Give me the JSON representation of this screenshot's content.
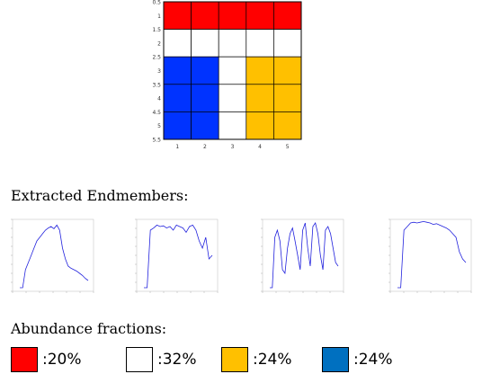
{
  "grid": {
    "colors": {
      "red": "#ff0000",
      "white": "#ffffff",
      "yellow": "#ffc000",
      "blue": "#0033ff"
    },
    "rows": [
      [
        "red",
        "red",
        "red",
        "red",
        "red"
      ],
      [
        "white",
        "white",
        "white",
        "white",
        "white"
      ],
      [
        "blue",
        "blue",
        "white",
        "yellow",
        "yellow"
      ],
      [
        "blue",
        "blue",
        "white",
        "yellow",
        "yellow"
      ],
      [
        "blue",
        "blue",
        "white",
        "yellow",
        "yellow"
      ]
    ],
    "y_ticks": [
      "0.5",
      "1",
      "1.5",
      "2",
      "2.5",
      "3",
      "3.5",
      "4",
      "4.5",
      "5",
      "5.5"
    ],
    "x_ticks": [
      "1",
      "2",
      "3",
      "4",
      "5"
    ]
  },
  "endmembers_heading": "Extracted Endmembers:",
  "abundance_heading": "Abundance fractions:",
  "abundance": [
    {
      "color": "#ff0000",
      "label": ":20%",
      "value": 20
    },
    {
      "color": "#ffffff",
      "label": ":32%",
      "value": 32
    },
    {
      "color": "#ffc000",
      "label": ":24%",
      "value": 24
    },
    {
      "color": "#0070c0",
      "label": ":24%",
      "value": 24
    }
  ],
  "spectra": [
    {
      "values": [
        0.05,
        0.05,
        0.3,
        0.4,
        0.5,
        0.6,
        0.7,
        0.75,
        0.8,
        0.85,
        0.88,
        0.9,
        0.87,
        0.92,
        0.85,
        0.6,
        0.45,
        0.35,
        0.32,
        0.3,
        0.28,
        0.25,
        0.22,
        0.18,
        0.15
      ]
    },
    {
      "values": [
        0.05,
        0.05,
        0.85,
        0.88,
        0.92,
        0.9,
        0.91,
        0.88,
        0.9,
        0.85,
        0.92,
        0.9,
        0.88,
        0.82,
        0.9,
        0.92,
        0.85,
        0.7,
        0.6,
        0.75,
        0.45,
        0.5
      ]
    },
    {
      "values": [
        0.05,
        0.05,
        0.75,
        0.85,
        0.7,
        0.3,
        0.25,
        0.6,
        0.8,
        0.88,
        0.7,
        0.5,
        0.3,
        0.85,
        0.95,
        0.6,
        0.35,
        0.9,
        0.95,
        0.8,
        0.5,
        0.3,
        0.85,
        0.9,
        0.8,
        0.6,
        0.4,
        0.35
      ]
    },
    {
      "values": [
        0.05,
        0.05,
        0.85,
        0.9,
        0.95,
        0.96,
        0.95,
        0.96,
        0.97,
        0.96,
        0.95,
        0.93,
        0.94,
        0.92,
        0.9,
        0.88,
        0.85,
        0.8,
        0.75,
        0.55,
        0.45,
        0.4
      ]
    }
  ]
}
